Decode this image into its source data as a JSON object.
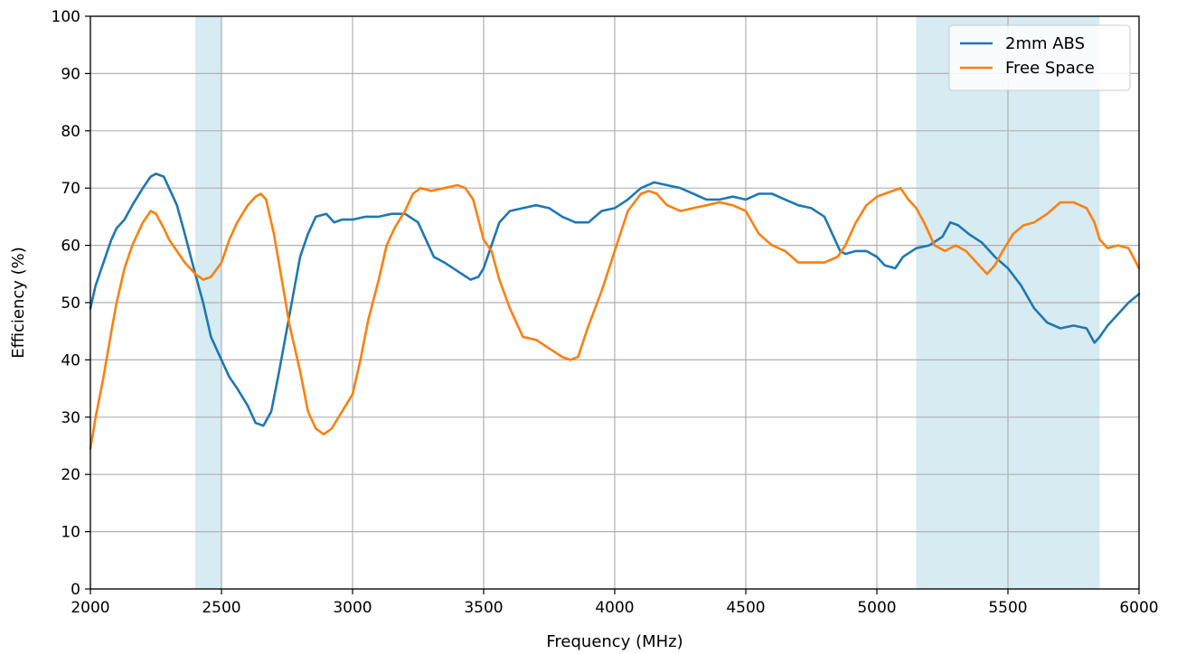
{
  "chart_data": {
    "type": "line",
    "title": "",
    "xlabel": "Frequency (MHz)",
    "ylabel": "Efficiency (%)",
    "xlim": [
      2000,
      6000
    ],
    "ylim": [
      0,
      100
    ],
    "xticks": [
      2000,
      2500,
      3000,
      3500,
      4000,
      4500,
      5000,
      5500,
      6000
    ],
    "yticks": [
      0,
      10,
      20,
      30,
      40,
      50,
      60,
      70,
      80,
      90,
      100
    ],
    "grid": true,
    "legend_position": "top-right",
    "shaded_bands": [
      {
        "x0": 2400,
        "x1": 2500,
        "color": "#add8e6"
      },
      {
        "x0": 5150,
        "x1": 5850,
        "color": "#add8e6"
      }
    ],
    "series": [
      {
        "name": "2mm ABS",
        "color": "#1f77b4",
        "x": [
          2000,
          2020,
          2050,
          2080,
          2100,
          2130,
          2160,
          2200,
          2230,
          2250,
          2280,
          2300,
          2330,
          2360,
          2400,
          2430,
          2460,
          2500,
          2530,
          2560,
          2600,
          2630,
          2660,
          2690,
          2720,
          2760,
          2800,
          2830,
          2860,
          2900,
          2930,
          2960,
          3000,
          3050,
          3100,
          3150,
          3200,
          3250,
          3280,
          3310,
          3350,
          3400,
          3450,
          3480,
          3500,
          3530,
          3560,
          3600,
          3650,
          3700,
          3750,
          3800,
          3850,
          3900,
          3950,
          4000,
          4050,
          4100,
          4150,
          4200,
          4250,
          4300,
          4350,
          4400,
          4450,
          4500,
          4550,
          4600,
          4650,
          4700,
          4750,
          4800,
          4830,
          4860,
          4880,
          4920,
          4960,
          5000,
          5030,
          5070,
          5100,
          5150,
          5200,
          5250,
          5280,
          5310,
          5350,
          5400,
          5450,
          5500,
          5550,
          5600,
          5650,
          5700,
          5750,
          5800,
          5830,
          5850,
          5880,
          5920,
          5960,
          6000
        ],
        "y": [
          49,
          53,
          57,
          61,
          63,
          64.5,
          67,
          70,
          72,
          72.5,
          72,
          70,
          67,
          62,
          55,
          50,
          44,
          40,
          37,
          35,
          32,
          29,
          28.5,
          31,
          38,
          48,
          58,
          62,
          65,
          65.5,
          64,
          64.5,
          64.5,
          65,
          65,
          65.5,
          65.5,
          64,
          61,
          58,
          57,
          55.5,
          54,
          54.5,
          56,
          60,
          64,
          66,
          66.5,
          67,
          66.5,
          65,
          64,
          64,
          66,
          66.5,
          68,
          70,
          71,
          70.5,
          70,
          69,
          68,
          68,
          68.5,
          68,
          69,
          69,
          68,
          67,
          66.5,
          65,
          62,
          59,
          58.5,
          59,
          59,
          58,
          56.5,
          56,
          58,
          59.5,
          60,
          61.5,
          64,
          63.5,
          62,
          60.5,
          58,
          56,
          53,
          49,
          46.5,
          45.5,
          46,
          45.5,
          43,
          44,
          46,
          48,
          50,
          51.5
        ]
      },
      {
        "name": "Free Space",
        "color": "#ff7f0e",
        "x": [
          2000,
          2020,
          2050,
          2080,
          2100,
          2130,
          2160,
          2200,
          2230,
          2250,
          2280,
          2300,
          2330,
          2360,
          2400,
          2430,
          2460,
          2500,
          2530,
          2560,
          2600,
          2630,
          2650,
          2670,
          2700,
          2730,
          2760,
          2800,
          2830,
          2860,
          2890,
          2920,
          2960,
          3000,
          3030,
          3060,
          3100,
          3130,
          3160,
          3200,
          3230,
          3260,
          3300,
          3350,
          3400,
          3430,
          3460,
          3500,
          3530,
          3560,
          3600,
          3650,
          3700,
          3750,
          3800,
          3830,
          3860,
          3900,
          3950,
          4000,
          4050,
          4100,
          4130,
          4160,
          4200,
          4250,
          4300,
          4350,
          4400,
          4450,
          4500,
          4550,
          4600,
          4650,
          4700,
          4750,
          4800,
          4850,
          4880,
          4920,
          4960,
          5000,
          5030,
          5060,
          5090,
          5120,
          5150,
          5180,
          5220,
          5260,
          5300,
          5340,
          5380,
          5420,
          5450,
          5480,
          5520,
          5560,
          5600,
          5650,
          5700,
          5750,
          5800,
          5830,
          5850,
          5880,
          5920,
          5960,
          6000
        ],
        "y": [
          24.5,
          30,
          37,
          45,
          50,
          56,
          60,
          64,
          66,
          65.5,
          63,
          61,
          59,
          57,
          55,
          54,
          54.5,
          57,
          61,
          64,
          67,
          68.5,
          69,
          68,
          62,
          54,
          46,
          38,
          31,
          28,
          27,
          28,
          31,
          34,
          40,
          47,
          54,
          60,
          63,
          66,
          69,
          70,
          69.5,
          70,
          70.5,
          70,
          68,
          61,
          59,
          54,
          49,
          44,
          43.5,
          42,
          40.5,
          40,
          40.5,
          46,
          52,
          59,
          66,
          69,
          69.5,
          69,
          67,
          66,
          66.5,
          67,
          67.5,
          67,
          66,
          62,
          60,
          59,
          57,
          57,
          57,
          58,
          60,
          64,
          67,
          68.5,
          69,
          69.5,
          70,
          68,
          66.5,
          64,
          60,
          59,
          60,
          59,
          57,
          55,
          56.5,
          59,
          62,
          63.5,
          64,
          65.5,
          67.5,
          67.5,
          66.5,
          64,
          61,
          59.5,
          60,
          59.5,
          56
        ]
      }
    ]
  }
}
